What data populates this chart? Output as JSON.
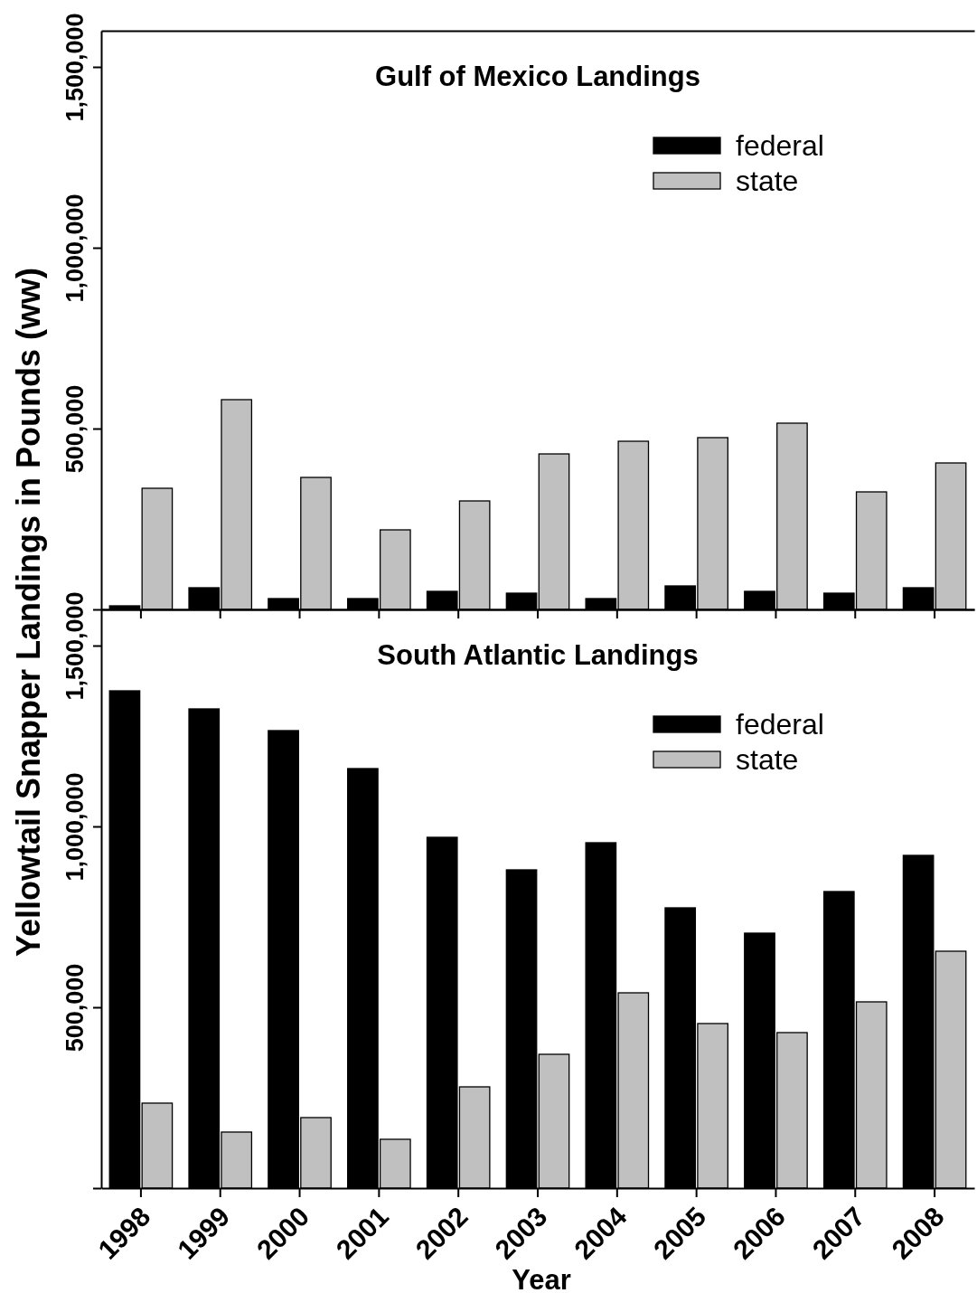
{
  "chart_data": [
    {
      "type": "bar",
      "title": "Gulf of Mexico Landings",
      "ylabel": "Yellowtail Snapper Landings in Pounds (ww)",
      "categories": [
        "1998",
        "1999",
        "2000",
        "2001",
        "2002",
        "2003",
        "2004",
        "2005",
        "2006",
        "2007",
        "2008"
      ],
      "series": [
        {
          "name": "federal",
          "color": "#000000",
          "values": [
            10000,
            60000,
            30000,
            30000,
            50000,
            45000,
            30000,
            65000,
            50000,
            45000,
            60000
          ]
        },
        {
          "name": "state",
          "color": "#c0c0c0",
          "values": [
            335000,
            580000,
            365000,
            220000,
            300000,
            430000,
            465000,
            475000,
            515000,
            325000,
            405000
          ]
        }
      ],
      "ylim": [
        0,
        1600000
      ],
      "yticks": [
        {
          "value": 0,
          "label": null
        },
        {
          "value": 500000,
          "label": "500,000"
        },
        {
          "value": 1000000,
          "label": "1,000,000"
        },
        {
          "value": 1500000,
          "label": "1,500,000"
        }
      ],
      "legend": "top right",
      "tick_labels": "y"
    },
    {
      "type": "bar",
      "title": "South Atlantic Landings",
      "xlabel": "Year",
      "categories": [
        "1998",
        "1999",
        "2000",
        "2001",
        "2002",
        "2003",
        "2004",
        "2005",
        "2006",
        "2007",
        "2008"
      ],
      "series": [
        {
          "name": "federal",
          "color": "#000000",
          "values": [
            1375000,
            1325000,
            1265000,
            1160000,
            970000,
            880000,
            955000,
            775000,
            705000,
            820000,
            920000
          ]
        },
        {
          "name": "state",
          "color": "#c0c0c0",
          "values": [
            235000,
            155000,
            195000,
            135000,
            280000,
            370000,
            540000,
            455000,
            430000,
            515000,
            655000
          ]
        }
      ],
      "ylim": [
        0,
        1600000
      ],
      "yticks": [
        {
          "value": 0,
          "label": null
        },
        {
          "value": 500000,
          "label": "500,000"
        },
        {
          "value": 1000000,
          "label": "1,000,000"
        },
        {
          "value": 1500000,
          "label": "1,500,000"
        }
      ],
      "legend": "top right"
    }
  ]
}
